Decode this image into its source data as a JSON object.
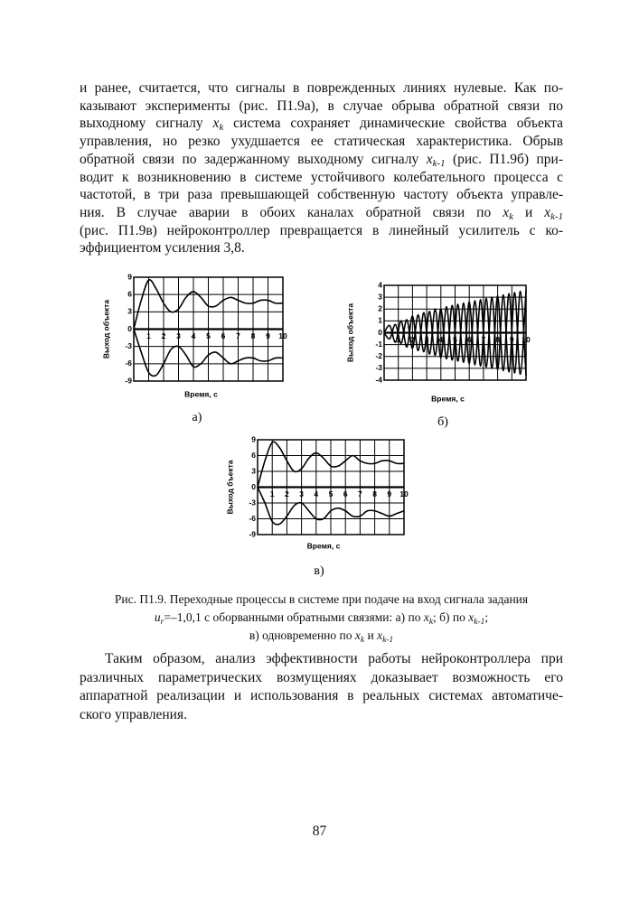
{
  "body": {
    "paragraph1": [
      [
        "и ранее, считается, что сигналы в поврежденных линиях нулевые. Как по-"
      ],
      [
        "казывают эксперименты (рис. П1.9а), в случае обрыва обратной связи по"
      ],
      [
        "выходному сигналу ",
        {
          "var": "x",
          "sub": "k"
        },
        " система сохраняет динамические свойства объекта"
      ],
      [
        "управления, но резко ухудшается ее статическая характеристика. Обрыв"
      ],
      [
        "обратной связи по задержанному выходному сигналу ",
        {
          "var": "x",
          "sub": "k-1"
        },
        " (рис. П1.9б) при-"
      ],
      [
        "водит к возникновению в системе устойчивого колебательного процесса с"
      ],
      [
        "частотой, в три раза превышающей собственную частоту объекта управле-"
      ],
      [
        "ния. В случае аварии в обоих каналах обратной связи по ",
        {
          "var": "x",
          "sub": "k"
        },
        " и ",
        {
          "var": "x",
          "sub": "k-1"
        }
      ],
      [
        "(рис. П1.9в) нейроконтроллер превращается в линейный усилитель с ко-"
      ],
      [
        "эффициентом усиления 3,8."
      ]
    ],
    "caption": [
      [
        "Рис. П1.9. Переходные процессы в системе при подаче на вход сигнала задания"
      ],
      [
        {
          "var": "u",
          "sub": "r"
        },
        "=–1,0,1 с оборванными обратными связями: а) по ",
        {
          "var": "x",
          "sub": "k"
        },
        "; б) по ",
        {
          "var": "x",
          "sub": "k-1"
        },
        ";"
      ],
      [
        "в) одновременно по  ",
        {
          "var": "x",
          "sub": "k"
        },
        " и ",
        {
          "var": "x",
          "sub": "k-1"
        }
      ]
    ],
    "paragraph2": [
      [
        "Таким образом, анализ эффективности работы нейроконтроллера при"
      ],
      [
        "различных параметрических возмущениях доказывает возможность его"
      ],
      [
        "аппаратной реализации и использования в реальных системах автоматиче-"
      ],
      [
        "ского управления."
      ]
    ],
    "page_number": "87"
  },
  "chart_data": [
    {
      "type": "line",
      "label": "а)",
      "y_label": "Выход объекта",
      "x_label": "Время, с",
      "x": [
        0,
        0.5,
        1,
        1.5,
        2,
        2.5,
        3,
        3.5,
        4,
        4.5,
        5,
        5.5,
        6,
        6.5,
        7,
        7.5,
        8,
        8.5,
        9,
        9.5,
        10
      ],
      "series": [
        {
          "color": "#000000",
          "values": [
            0,
            5,
            8.5,
            7,
            4.5,
            3,
            3.5,
            5.5,
            6.5,
            5.5,
            4,
            4,
            5,
            5.5,
            5,
            4.5,
            4.5,
            5,
            5,
            4.5,
            4.5
          ]
        },
        {
          "color": "#000000",
          "values": [
            0,
            -4,
            -7.5,
            -8,
            -6,
            -3.5,
            -3,
            -4.5,
            -6.5,
            -6,
            -4.5,
            -4,
            -5,
            -6,
            -5.5,
            -5,
            -5,
            -5.5,
            -5.5,
            -5,
            -5
          ]
        }
      ],
      "xlim": [
        0,
        10
      ],
      "ylim": [
        -9,
        9
      ],
      "xticks": [
        1,
        2,
        3,
        4,
        5,
        6,
        7,
        8,
        9,
        10
      ],
      "yticks": [
        -9,
        -6,
        -3,
        0,
        3,
        6,
        9
      ],
      "grid": true
    },
    {
      "type": "line",
      "label": "б)",
      "y_label": "Выход объекта",
      "x_label": "Время, с",
      "x": [
        0,
        0.4,
        0.8,
        1.2,
        1.6,
        2,
        2.4,
        2.8,
        3.2,
        3.6,
        4,
        4.4,
        4.8,
        5.2,
        5.6,
        6,
        6.4,
        6.8,
        7.2,
        7.6,
        8,
        8.4,
        8.8,
        9.2,
        9.6,
        10
      ],
      "series": [
        {
          "color": "#000000",
          "values": [
            0,
            0.6,
            -0.8,
            1,
            -1.2,
            1.4,
            -1.5,
            1.7,
            -1.8,
            2,
            -2.1,
            2.2,
            -2.3,
            2.4,
            -2.5,
            2.6,
            -2.7,
            2.8,
            -2.9,
            3,
            -3.1,
            3.2,
            -3.3,
            3.4,
            -3.5,
            3.6
          ]
        },
        {
          "color": "#000000",
          "values": [
            0,
            -0.5,
            0.7,
            -0.9,
            1.1,
            -1.3,
            1.5,
            -1.6,
            1.8,
            -1.9,
            2,
            -2.2,
            2.3,
            -2.4,
            2.5,
            -2.6,
            2.7,
            -2.8,
            2.9,
            -3,
            3.1,
            -3.2,
            3.3,
            -3.4,
            3.5,
            -3.6
          ]
        }
      ],
      "xlim": [
        0,
        10
      ],
      "ylim": [
        -4,
        4
      ],
      "xticks": [
        1,
        2,
        3,
        4,
        5,
        6,
        7,
        8,
        9,
        10
      ],
      "yticks": [
        -4,
        -3,
        -2,
        -1,
        0,
        1,
        2,
        3,
        4
      ],
      "grid": true
    },
    {
      "type": "line",
      "label": "в)",
      "y_label": "Выход бъекта",
      "x_label": "Время, с",
      "x": [
        0,
        0.5,
        1,
        1.5,
        2,
        2.5,
        3,
        3.5,
        4,
        4.5,
        5,
        5.5,
        6,
        6.5,
        7,
        7.5,
        8,
        8.5,
        9,
        9.5,
        10
      ],
      "series": [
        {
          "color": "#000000",
          "values": [
            0,
            5,
            8.5,
            7.5,
            5,
            3,
            3.5,
            5.5,
            6.5,
            5.5,
            4,
            4,
            5,
            6,
            5,
            4.5,
            4.5,
            5,
            5,
            4.5,
            4.5
          ]
        },
        {
          "color": "#000000",
          "values": [
            0,
            -3,
            -6.5,
            -7,
            -5.5,
            -3.5,
            -3,
            -4.5,
            -6,
            -6,
            -4.5,
            -4,
            -4.5,
            -5.5,
            -5.5,
            -4.5,
            -4.5,
            -5,
            -5.5,
            -5,
            -4.5
          ]
        }
      ],
      "xlim": [
        0,
        10
      ],
      "ylim": [
        -9,
        9
      ],
      "xticks": [
        1,
        2,
        3,
        4,
        5,
        6,
        7,
        8,
        9,
        10
      ],
      "yticks": [
        -9,
        -6,
        -3,
        0,
        3,
        6,
        9
      ],
      "grid": true
    }
  ]
}
